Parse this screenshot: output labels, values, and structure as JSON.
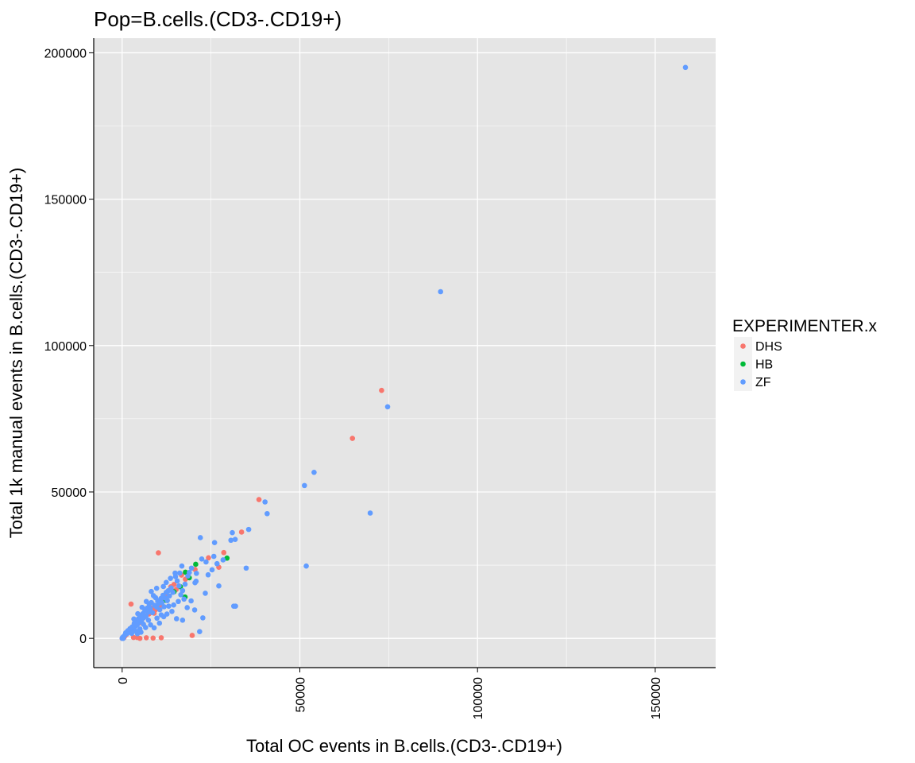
{
  "chart_data": {
    "type": "scatter",
    "title": "Pop=B.cells.(CD3-.CD19+)",
    "xlabel": "Total OC events in B.cells.(CD3-.CD19+)",
    "ylabel": "Total 1k manual events in B.cells.(CD3-.CD19+)",
    "xlim": [
      -8000,
      167000
    ],
    "ylim": [
      -10000,
      205000
    ],
    "xticks": [
      0,
      50000,
      100000,
      150000
    ],
    "yticks": [
      0,
      50000,
      100000,
      150000,
      200000
    ],
    "xtick_labels": [
      "0",
      "50000",
      "100000",
      "150000"
    ],
    "ytick_labels": [
      "0",
      "50000",
      "100000",
      "150000",
      "200000"
    ],
    "grid": true,
    "legend": {
      "title": "EXPERIMENTER.x",
      "position": "right",
      "entries": [
        "DHS",
        "HB",
        "ZF"
      ]
    },
    "colors": {
      "DHS": "#F8766D",
      "HB": "#00BA38",
      "ZF": "#619CFF",
      "panel": "#E5E5E5",
      "grid": "#FFFFFF"
    },
    "series": [
      {
        "name": "DHS",
        "points": [
          [
            73000,
            84700
          ],
          [
            64800,
            68300
          ],
          [
            38500,
            47400
          ],
          [
            33600,
            36300
          ],
          [
            28600,
            29300
          ],
          [
            27200,
            24300
          ],
          [
            10200,
            29200
          ],
          [
            2500,
            11700
          ],
          [
            19700,
            1000
          ],
          [
            11000,
            200
          ],
          [
            8700,
            100
          ],
          [
            6800,
            200
          ],
          [
            5000,
            0
          ],
          [
            4200,
            300
          ],
          [
            3200,
            300
          ],
          [
            1200,
            1300
          ],
          [
            700,
            700
          ],
          [
            0,
            0
          ],
          [
            500,
            200
          ],
          [
            2200,
            2100
          ],
          [
            5600,
            6600
          ],
          [
            6000,
            8000
          ],
          [
            7500,
            8300
          ],
          [
            9400,
            9800
          ],
          [
            12800,
            14600
          ],
          [
            14600,
            18400
          ],
          [
            16700,
            21600
          ],
          [
            17800,
            20200
          ],
          [
            20500,
            23500
          ],
          [
            24300,
            27500
          ],
          [
            13700,
            17600
          ],
          [
            15200,
            16700
          ],
          [
            11600,
            12900
          ],
          [
            8200,
            10300
          ],
          [
            3600,
            4100
          ],
          [
            4700,
            5200
          ],
          [
            9000,
            8600
          ],
          [
            10700,
            11200
          ]
        ]
      },
      {
        "name": "HB",
        "points": [
          [
            29500,
            27400
          ],
          [
            20700,
            25300
          ],
          [
            17800,
            22600
          ],
          [
            18900,
            20700
          ],
          [
            14600,
            15900
          ],
          [
            16400,
            17600
          ],
          [
            17700,
            14100
          ],
          [
            12300,
            13000
          ]
        ]
      },
      {
        "name": "ZF",
        "points": [
          [
            158500,
            195000
          ],
          [
            89600,
            118400
          ],
          [
            74700,
            79100
          ],
          [
            54000,
            56700
          ],
          [
            51300,
            52200
          ],
          [
            69800,
            42800
          ],
          [
            40200,
            46600
          ],
          [
            40800,
            42600
          ],
          [
            51800,
            24700
          ],
          [
            35600,
            37200
          ],
          [
            34900,
            24000
          ],
          [
            31000,
            36100
          ],
          [
            30600,
            33500
          ],
          [
            31800,
            33800
          ],
          [
            31400,
            11000
          ],
          [
            31900,
            11000
          ],
          [
            27200,
            17900
          ],
          [
            26000,
            32700
          ],
          [
            25800,
            28000
          ],
          [
            22000,
            34400
          ],
          [
            23600,
            26100
          ],
          [
            22400,
            27100
          ],
          [
            20900,
            22200
          ],
          [
            23400,
            15400
          ],
          [
            22700,
            7000
          ],
          [
            20500,
            19000
          ],
          [
            18900,
            22500
          ],
          [
            18500,
            21300
          ],
          [
            17700,
            18500
          ],
          [
            17000,
            16300
          ],
          [
            16500,
            14900
          ],
          [
            16000,
            17900
          ],
          [
            15500,
            19600
          ],
          [
            14900,
            22300
          ],
          [
            14300,
            15700
          ],
          [
            13800,
            17200
          ],
          [
            13300,
            14500
          ],
          [
            13000,
            16300
          ],
          [
            12700,
            12900
          ],
          [
            12400,
            15700
          ],
          [
            12100,
            13800
          ],
          [
            11800,
            10800
          ],
          [
            11500,
            14700
          ],
          [
            11200,
            12200
          ],
          [
            10900,
            13600
          ],
          [
            10600,
            9800
          ],
          [
            10300,
            11800
          ],
          [
            10000,
            12800
          ],
          [
            9700,
            10700
          ],
          [
            9400,
            13900
          ],
          [
            9100,
            11300
          ],
          [
            8800,
            14600
          ],
          [
            8500,
            8800
          ],
          [
            8200,
            12200
          ],
          [
            7900,
            10200
          ],
          [
            7600,
            11700
          ],
          [
            7300,
            8900
          ],
          [
            7000,
            10300
          ],
          [
            6700,
            7600
          ],
          [
            6400,
            9400
          ],
          [
            6100,
            7100
          ],
          [
            5800,
            8400
          ],
          [
            5500,
            6200
          ],
          [
            5200,
            7800
          ],
          [
            4900,
            5600
          ],
          [
            4600,
            6700
          ],
          [
            4300,
            4700
          ],
          [
            4000,
            5900
          ],
          [
            3700,
            4100
          ],
          [
            3400,
            5100
          ],
          [
            3100,
            3300
          ],
          [
            2800,
            3900
          ],
          [
            2500,
            2700
          ],
          [
            2200,
            3300
          ],
          [
            1900,
            2100
          ],
          [
            1600,
            2600
          ],
          [
            1300,
            1600
          ],
          [
            1000,
            1900
          ],
          [
            700,
            1000
          ],
          [
            400,
            600
          ],
          [
            100,
            300
          ],
          [
            0,
            0
          ],
          [
            300,
            0
          ],
          [
            8000,
            4600
          ],
          [
            9000,
            3600
          ],
          [
            10500,
            5200
          ],
          [
            11700,
            7400
          ],
          [
            12600,
            8300
          ],
          [
            14000,
            9200
          ],
          [
            15300,
            6700
          ],
          [
            17000,
            6200
          ],
          [
            21800,
            2300
          ],
          [
            6600,
            3700
          ],
          [
            5300,
            2100
          ],
          [
            4300,
            1600
          ],
          [
            14500,
            11400
          ],
          [
            15800,
            12600
          ],
          [
            17400,
            13400
          ],
          [
            18300,
            10500
          ],
          [
            19400,
            12800
          ],
          [
            20400,
            9700
          ],
          [
            24200,
            21700
          ],
          [
            25300,
            23400
          ],
          [
            26700,
            25500
          ],
          [
            28400,
            26800
          ],
          [
            9700,
            17100
          ],
          [
            8200,
            16000
          ],
          [
            6800,
            12600
          ],
          [
            5600,
            10600
          ],
          [
            4400,
            8400
          ],
          [
            3300,
            6600
          ],
          [
            11600,
            17700
          ],
          [
            12400,
            19100
          ],
          [
            13600,
            20500
          ],
          [
            15000,
            21100
          ],
          [
            16200,
            22300
          ],
          [
            16800,
            24700
          ],
          [
            19500,
            24000
          ],
          [
            20800,
            19500
          ],
          [
            13100,
            11000
          ],
          [
            11000,
            8000
          ],
          [
            9800,
            6900
          ],
          [
            7400,
            6200
          ],
          [
            6000,
            4800
          ],
          [
            2700,
            1700
          ],
          [
            3900,
            2400
          ],
          [
            5000,
            3200
          ]
        ]
      }
    ]
  }
}
